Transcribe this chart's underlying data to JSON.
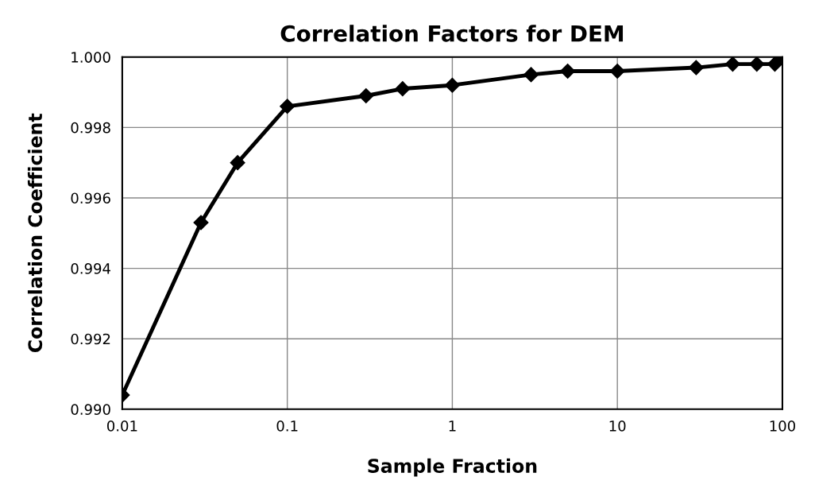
{
  "chart_data": {
    "type": "line",
    "title": "Correlation Factors for DEM",
    "xlabel": "Sample Fraction",
    "ylabel": "Correlation Coefficient",
    "log": "x",
    "grid": true,
    "marker": "diamond",
    "line_style": "solid",
    "xlim": [
      0.01,
      100
    ],
    "xticks": [
      0.01,
      0.1,
      1,
      10,
      100
    ],
    "ylim": [
      0.99,
      1.0
    ],
    "yticks": [
      {
        "value": 0.99,
        "label": "0.990"
      },
      {
        "value": 0.992,
        "label": "0.992"
      },
      {
        "value": 0.994,
        "label": "0.994"
      },
      {
        "value": 0.996,
        "label": "0.996"
      },
      {
        "value": 0.998,
        "label": "0.998"
      },
      {
        "value": 1.0,
        "label": "1.000"
      }
    ],
    "series": [
      {
        "color": "#000000",
        "x": [
          0.01,
          0.03,
          0.05,
          0.1,
          0.3,
          0.5,
          1,
          3,
          5,
          10,
          30,
          50,
          70,
          90,
          100
        ],
        "values": [
          0.9904,
          0.9953,
          0.997,
          0.9986,
          0.9989,
          0.9991,
          0.9992,
          0.9995,
          0.9996,
          0.9996,
          0.9997,
          0.9998,
          0.9998,
          0.9998,
          1.0
        ]
      }
    ]
  }
}
